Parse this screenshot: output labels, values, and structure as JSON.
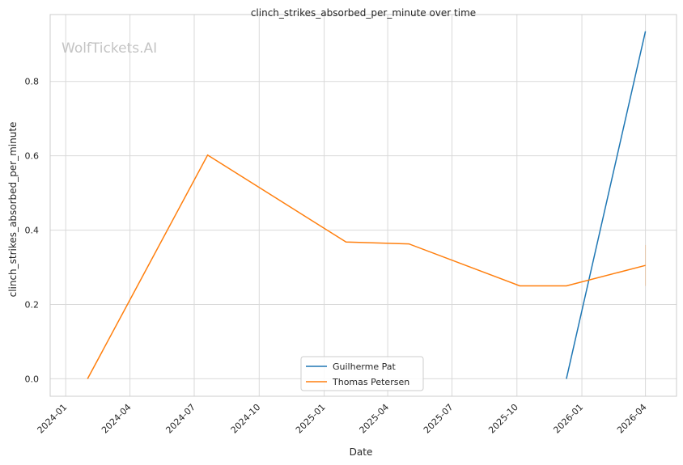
{
  "chart_data": {
    "type": "line",
    "title": "clinch_strikes_absorbed_per_minute over time",
    "xlabel": "Date",
    "ylabel": "clinch_strikes_absorbed_per_minute",
    "watermark": "WolfTickets.AI",
    "x_range": [
      "2023-12-10",
      "2026-05-15"
    ],
    "ylim": [
      -0.047,
      0.98
    ],
    "x_ticks": [
      "2024-01",
      "2024-04",
      "2024-07",
      "2024-10",
      "2025-01",
      "2025-04",
      "2025-07",
      "2025-10",
      "2026-01",
      "2026-04"
    ],
    "y_ticks": [
      0.0,
      0.2,
      0.4,
      0.6,
      0.8
    ],
    "y_tick_labels": [
      "0.0",
      "0.2",
      "0.4",
      "0.6",
      "0.8"
    ],
    "grid": true,
    "legend_position": "bottom-center",
    "series": [
      {
        "name": "Guilherme Pat",
        "color": "#1f77b4",
        "points": [
          {
            "x": "2025-12-10",
            "y": 0.0
          },
          {
            "x": "2026-04-01",
            "y": 0.935
          }
        ]
      },
      {
        "name": "Thomas Petersen",
        "color": "#ff7f0e",
        "points": [
          {
            "x": "2024-02-01",
            "y": 0.0
          },
          {
            "x": "2024-07-20",
            "y": 0.602
          },
          {
            "x": "2025-02-01",
            "y": 0.368
          },
          {
            "x": "2025-05-01",
            "y": 0.363
          },
          {
            "x": "2025-10-05",
            "y": 0.25
          },
          {
            "x": "2025-12-10",
            "y": 0.25
          },
          {
            "x": "2026-04-01",
            "y": 0.305
          }
        ]
      }
    ]
  }
}
